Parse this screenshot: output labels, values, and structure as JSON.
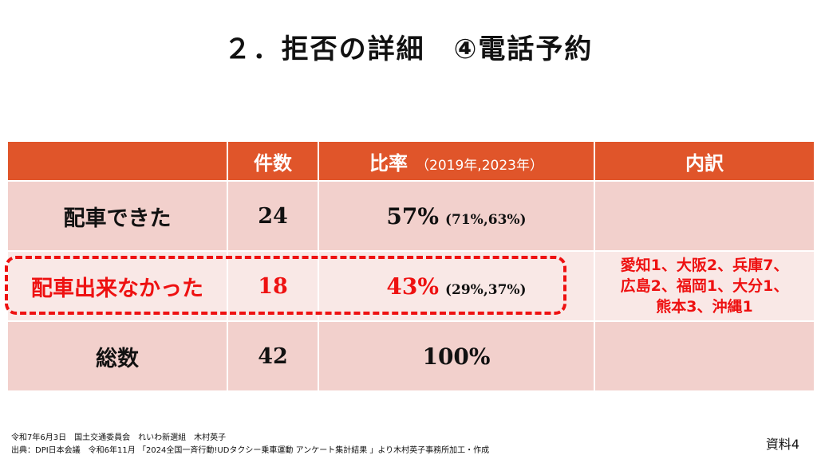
{
  "title": "２．拒否の詳細　④電話予約",
  "table": {
    "headers": {
      "count": "件数",
      "rate": "比率",
      "rate_sub": "（2019年,2023年）",
      "breakdown": "内訳"
    },
    "rows": [
      {
        "label": "配車できた",
        "count": "24",
        "rate": "57%",
        "rate_sub": "(71%,63%)",
        "breakdown": [
          "",
          "",
          ""
        ]
      },
      {
        "label": "配車出来なかった",
        "count": "18",
        "rate": "43%",
        "rate_sub": "(29%,37%)",
        "breakdown": [
          "愛知1、大阪2、兵庫7、",
          "広島2、福岡1、大分1、",
          "熊本3、沖縄1"
        ]
      },
      {
        "label": "総数",
        "count": "42",
        "rate": "100%",
        "rate_sub": "",
        "breakdown": [
          "",
          "",
          ""
        ]
      }
    ]
  },
  "footer": {
    "line1": "令和7年6月3日　国土交通委員会　れいわ新選組　木村英子",
    "line2": "出典：DPI日本会議　令和6年11月 「2024全国一斉行動!UDタクシー乗車運動 アンケート集計結果 」より木村英子事務所加工・作成",
    "doc_label": "資料4"
  },
  "colors": {
    "header": "#e0552a",
    "row": "#f2d0cc",
    "row_alt": "#f9e8e6",
    "highlight": "#ee1111"
  }
}
